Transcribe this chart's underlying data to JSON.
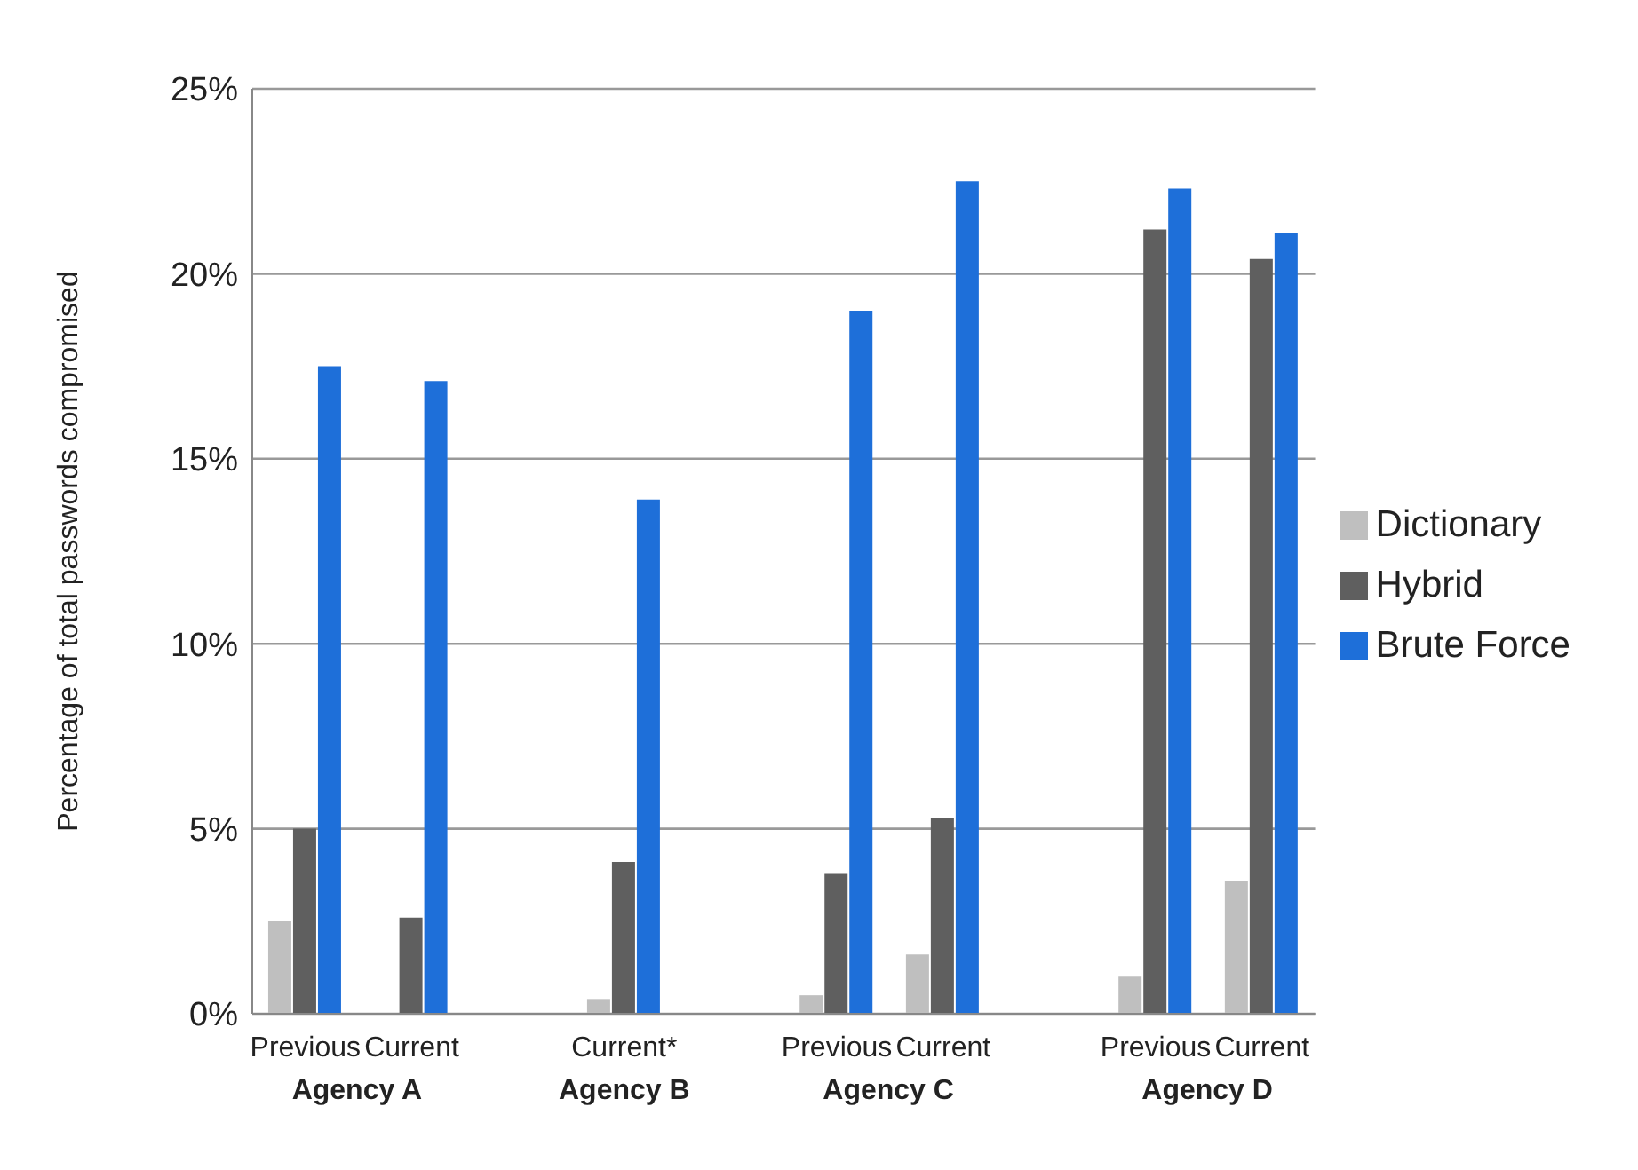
{
  "chart_data": {
    "type": "bar",
    "ylabel": "Percentage of total passwords compromised",
    "categories": [
      "Previous",
      "Current",
      null,
      "Current*",
      null,
      "Previous",
      "Current",
      null,
      "Previous",
      "Current"
    ],
    "series": [
      {
        "name": "Dictionary",
        "color": "#bfbfbf",
        "values": [
          2.5,
          0,
          null,
          0.4,
          null,
          0.5,
          1.6,
          null,
          1.0,
          3.6
        ]
      },
      {
        "name": "Hybrid",
        "color": "#5f5f5f",
        "values": [
          5.0,
          2.6,
          null,
          4.1,
          null,
          3.8,
          5.3,
          null,
          21.2,
          20.4
        ]
      },
      {
        "name": "Brute Force",
        "color": "#1e6fd9",
        "values": [
          17.5,
          17.1,
          null,
          13.9,
          null,
          19.0,
          22.5,
          null,
          22.3,
          21.1
        ]
      }
    ],
    "ylim": [
      0,
      25
    ],
    "yticks": [
      {
        "value": 0,
        "label": "0%"
      },
      {
        "value": 5,
        "label": "5%"
      },
      {
        "value": 10,
        "label": "10%"
      },
      {
        "value": 15,
        "label": "15%"
      },
      {
        "value": 20,
        "label": "20%"
      },
      {
        "value": 25,
        "label": "25%"
      }
    ],
    "grid": "y",
    "legend": "right",
    "annotations": [
      "Agency A",
      "Agency B",
      "Agency C",
      "Agency D"
    ]
  }
}
